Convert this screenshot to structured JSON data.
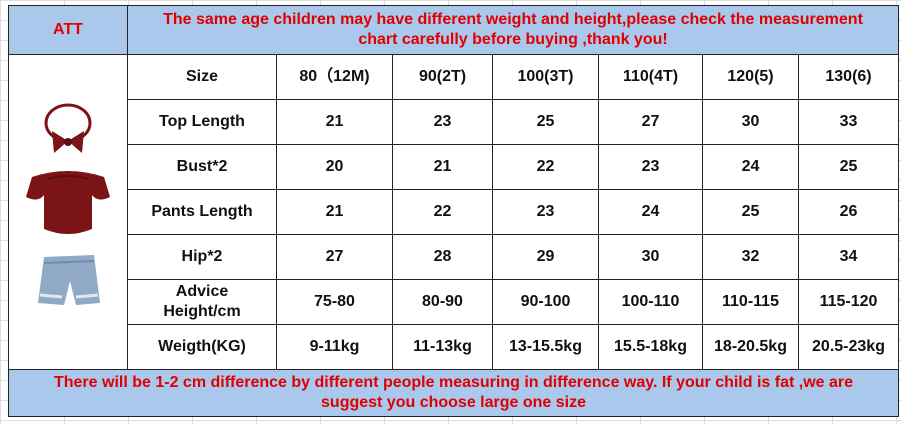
{
  "header": {
    "brand": "ATT",
    "notice_line1": "The same age children may have different weight and height,please check the measurement",
    "notice_line2": "chart carefully before buying ,thank you!"
  },
  "size_chart": {
    "columns": [
      "Size",
      "80（12M)",
      "90(2T)",
      "100(3T)",
      "110(4T)",
      "120(5)",
      "130(6)"
    ],
    "rows": [
      {
        "label": "Top Length",
        "values": [
          "21",
          "23",
          "25",
          "27",
          "30",
          "33"
        ]
      },
      {
        "label": "Bust*2",
        "values": [
          "20",
          "21",
          "22",
          "23",
          "24",
          "25"
        ]
      },
      {
        "label": "Pants Length",
        "values": [
          "21",
          "22",
          "23",
          "24",
          "25",
          "26"
        ]
      },
      {
        "label": "Hip*2",
        "values": [
          "27",
          "28",
          "29",
          "30",
          "32",
          "34"
        ]
      },
      {
        "label_line1": "Advice",
        "label_line2": "Height/cm",
        "values": [
          "75-80",
          "80-90",
          "90-100",
          "100-110",
          "110-115",
          "115-120"
        ]
      },
      {
        "label": "Weigth(KG)",
        "values": [
          "9-11kg",
          "11-13kg",
          "13-15.5kg",
          "15.5-18kg",
          "18-20.5kg",
          "20.5-23kg"
        ]
      }
    ]
  },
  "footer": {
    "notice_line1": "There will be 1-2 cm difference by different people measuring in difference way. If your child is fat ,we are",
    "notice_line2": "suggest you choose large one size"
  },
  "product_image": {
    "icon": "outfit-photo-icon",
    "colors": {
      "top": "#7a1416",
      "bow": "#7a1416",
      "denim": "#8fa9c6"
    }
  }
}
